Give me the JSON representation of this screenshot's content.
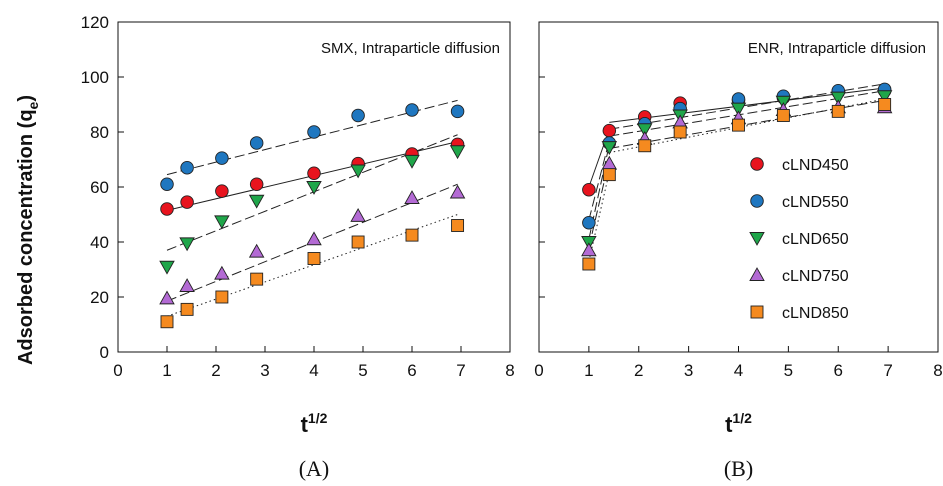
{
  "figure": {
    "ylabel_main": "Adsorbed concentration (q",
    "ylabel_sub": "e",
    "ylabel_close": ")",
    "legend": [
      {
        "name": "cLND450",
        "color": "#e8141e",
        "marker": "circle"
      },
      {
        "name": "cLND550",
        "color": "#1f77c0",
        "marker": "circle"
      },
      {
        "name": "cLND650",
        "color": "#1fa64a",
        "marker": "triangle-down"
      },
      {
        "name": "cLND750",
        "color": "#b36ad4",
        "marker": "triangle-up"
      },
      {
        "name": "cLND850",
        "color": "#f58a1f",
        "marker": "square"
      }
    ]
  },
  "chart_data": [
    {
      "type": "scatter",
      "panel_label": "(A)",
      "annotation": "SMX, Intraparticle diffusion",
      "xlabel_main": "t",
      "xlabel_sup": "1/2",
      "xlim": [
        0,
        8
      ],
      "ylim": [
        0,
        120
      ],
      "xticks": [
        0,
        1,
        2,
        3,
        4,
        5,
        6,
        7,
        8
      ],
      "yticks": [
        0,
        20,
        40,
        60,
        80,
        100,
        120
      ],
      "x": [
        1.0,
        1.41,
        2.12,
        2.83,
        4.0,
        4.9,
        6.0,
        6.93
      ],
      "series": [
        {
          "name": "cLND450",
          "values": [
            52,
            54.5,
            58.5,
            61,
            65,
            68.5,
            72,
            75.5
          ],
          "fits": [
            {
              "x": [
                1,
                6.93
              ],
              "y": [
                51.5,
                76.5
              ],
              "style": "solid"
            }
          ]
        },
        {
          "name": "cLND550",
          "values": [
            61,
            67,
            70.5,
            76,
            80,
            86,
            88,
            87.5
          ],
          "fits": [
            {
              "x": [
                1,
                6.93
              ],
              "y": [
                64.5,
                91.5
              ],
              "style": "dash"
            }
          ]
        },
        {
          "name": "cLND650",
          "values": [
            31,
            39.5,
            47.5,
            55,
            60,
            66,
            69.5,
            73
          ],
          "fits": [
            {
              "x": [
                1,
                6.93
              ],
              "y": [
                37,
                79
              ],
              "style": "dash"
            }
          ]
        },
        {
          "name": "cLND750",
          "values": [
            19.5,
            24,
            28.5,
            36.5,
            41,
            49.5,
            56,
            58
          ],
          "fits": [
            {
              "x": [
                1,
                6.93
              ],
              "y": [
                18.5,
                61
              ],
              "style": "dash"
            }
          ]
        },
        {
          "name": "cLND850",
          "values": [
            11,
            15.5,
            20,
            26.5,
            34,
            40,
            42.5,
            46
          ],
          "fits": [
            {
              "x": [
                1,
                6.93
              ],
              "y": [
                13,
                50
              ],
              "style": "dot"
            }
          ]
        }
      ]
    },
    {
      "type": "scatter",
      "panel_label": "(B)",
      "annotation": "ENR, Intraparticle diffusion",
      "xlabel_main": "t",
      "xlabel_sup": "1/2",
      "xlim": [
        0,
        8
      ],
      "ylim": [
        0,
        120
      ],
      "xticks": [
        0,
        1,
        2,
        3,
        4,
        5,
        6,
        7,
        8
      ],
      "yticks": [
        0,
        20,
        40,
        60,
        80,
        100,
        120
      ],
      "x": [
        1.0,
        1.41,
        2.12,
        2.83,
        4.0,
        4.9,
        6.0,
        6.93
      ],
      "series": [
        {
          "name": "cLND450",
          "values": [
            59,
            80.5,
            85.5,
            90.5,
            91.5,
            92.5,
            94.5,
            95
          ],
          "fits": [
            {
              "x": [
                1,
                1.41
              ],
              "y": [
                60,
                81
              ],
              "style": "solid"
            },
            {
              "x": [
                1.41,
                6.93
              ],
              "y": [
                83.5,
                96
              ],
              "style": "solid"
            }
          ]
        },
        {
          "name": "cLND550",
          "values": [
            47,
            76,
            83,
            88.5,
            92,
            93,
            95,
            95.5
          ],
          "fits": [
            {
              "x": [
                1,
                1.41
              ],
              "y": [
                48,
                77
              ],
              "style": "dash"
            },
            {
              "x": [
                1.41,
                6.93
              ],
              "y": [
                81,
                97.5
              ],
              "style": "dash"
            }
          ]
        },
        {
          "name": "cLND650",
          "values": [
            40,
            74.5,
            81,
            86,
            88.5,
            91,
            92.5,
            93
          ],
          "fits": [
            {
              "x": [
                1,
                1.41
              ],
              "y": [
                41,
                75.5
              ],
              "style": "dash"
            },
            {
              "x": [
                1.41,
                6.93
              ],
              "y": [
                78.5,
                95
              ],
              "style": "dash"
            }
          ]
        },
        {
          "name": "cLND750",
          "values": [
            37,
            68.5,
            77.5,
            83.5,
            85,
            88,
            89,
            89
          ],
          "fits": [
            {
              "x": [
                1,
                1.41
              ],
              "y": [
                38,
                70
              ],
              "style": "dash"
            },
            {
              "x": [
                1.41,
                6.93
              ],
              "y": [
                74,
                91.5
              ],
              "style": "dash"
            }
          ]
        },
        {
          "name": "cLND850",
          "values": [
            32,
            64.5,
            75,
            80,
            82.5,
            86,
            87.5,
            90
          ],
          "fits": [
            {
              "x": [
                1,
                1.41
              ],
              "y": [
                33,
                65.5
              ],
              "style": "dot"
            },
            {
              "x": [
                1.41,
                6.93
              ],
              "y": [
                72.5,
                92
              ],
              "style": "dot"
            }
          ]
        }
      ]
    }
  ]
}
